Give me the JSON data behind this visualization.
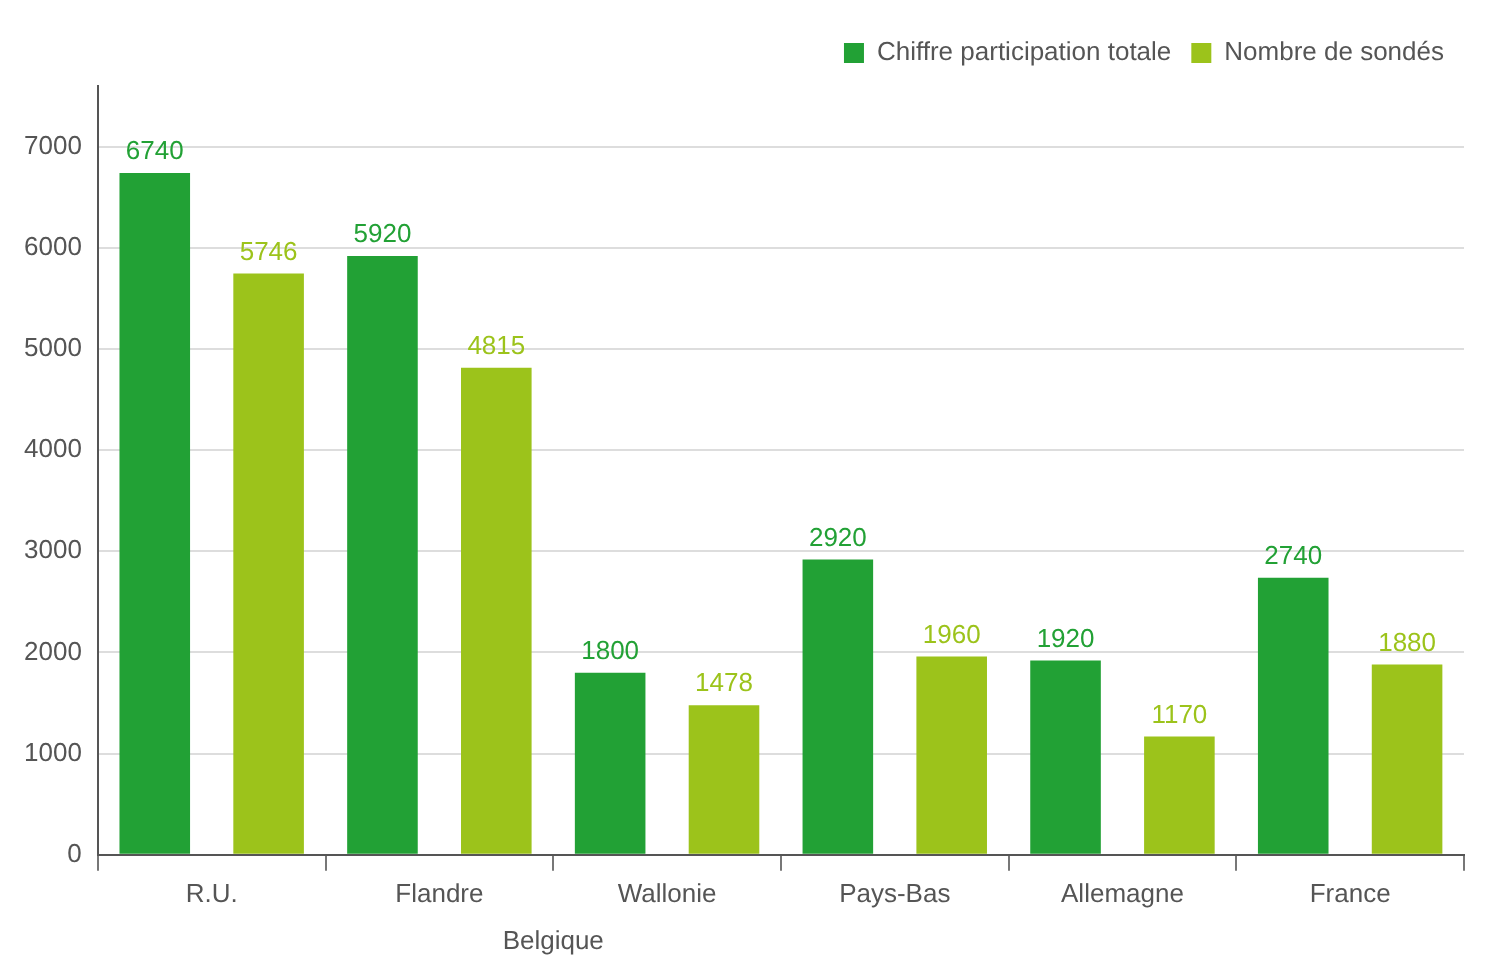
{
  "chart_data": {
    "type": "bar",
    "categories": [
      "R.U.",
      "Flandre",
      "Wallonie",
      "Pays-Bas",
      "Allemagne",
      "France"
    ],
    "series": [
      {
        "name": "Chiffre participation totale",
        "color": "#22a135",
        "values": [
          6740,
          5920,
          1800,
          2920,
          1920,
          2740
        ]
      },
      {
        "name": "Nombre de sondés",
        "color": "#9cc31b",
        "values": [
          5746,
          4815,
          1478,
          1960,
          1170,
          1880
        ]
      }
    ],
    "annotations": [
      "Belgique"
    ],
    "ylim": [
      0,
      7600
    ],
    "yticks": [
      0,
      1000,
      2000,
      3000,
      4000,
      5000,
      6000,
      7000
    ],
    "grid": "y",
    "legend": "top right",
    "data_labels": true
  }
}
